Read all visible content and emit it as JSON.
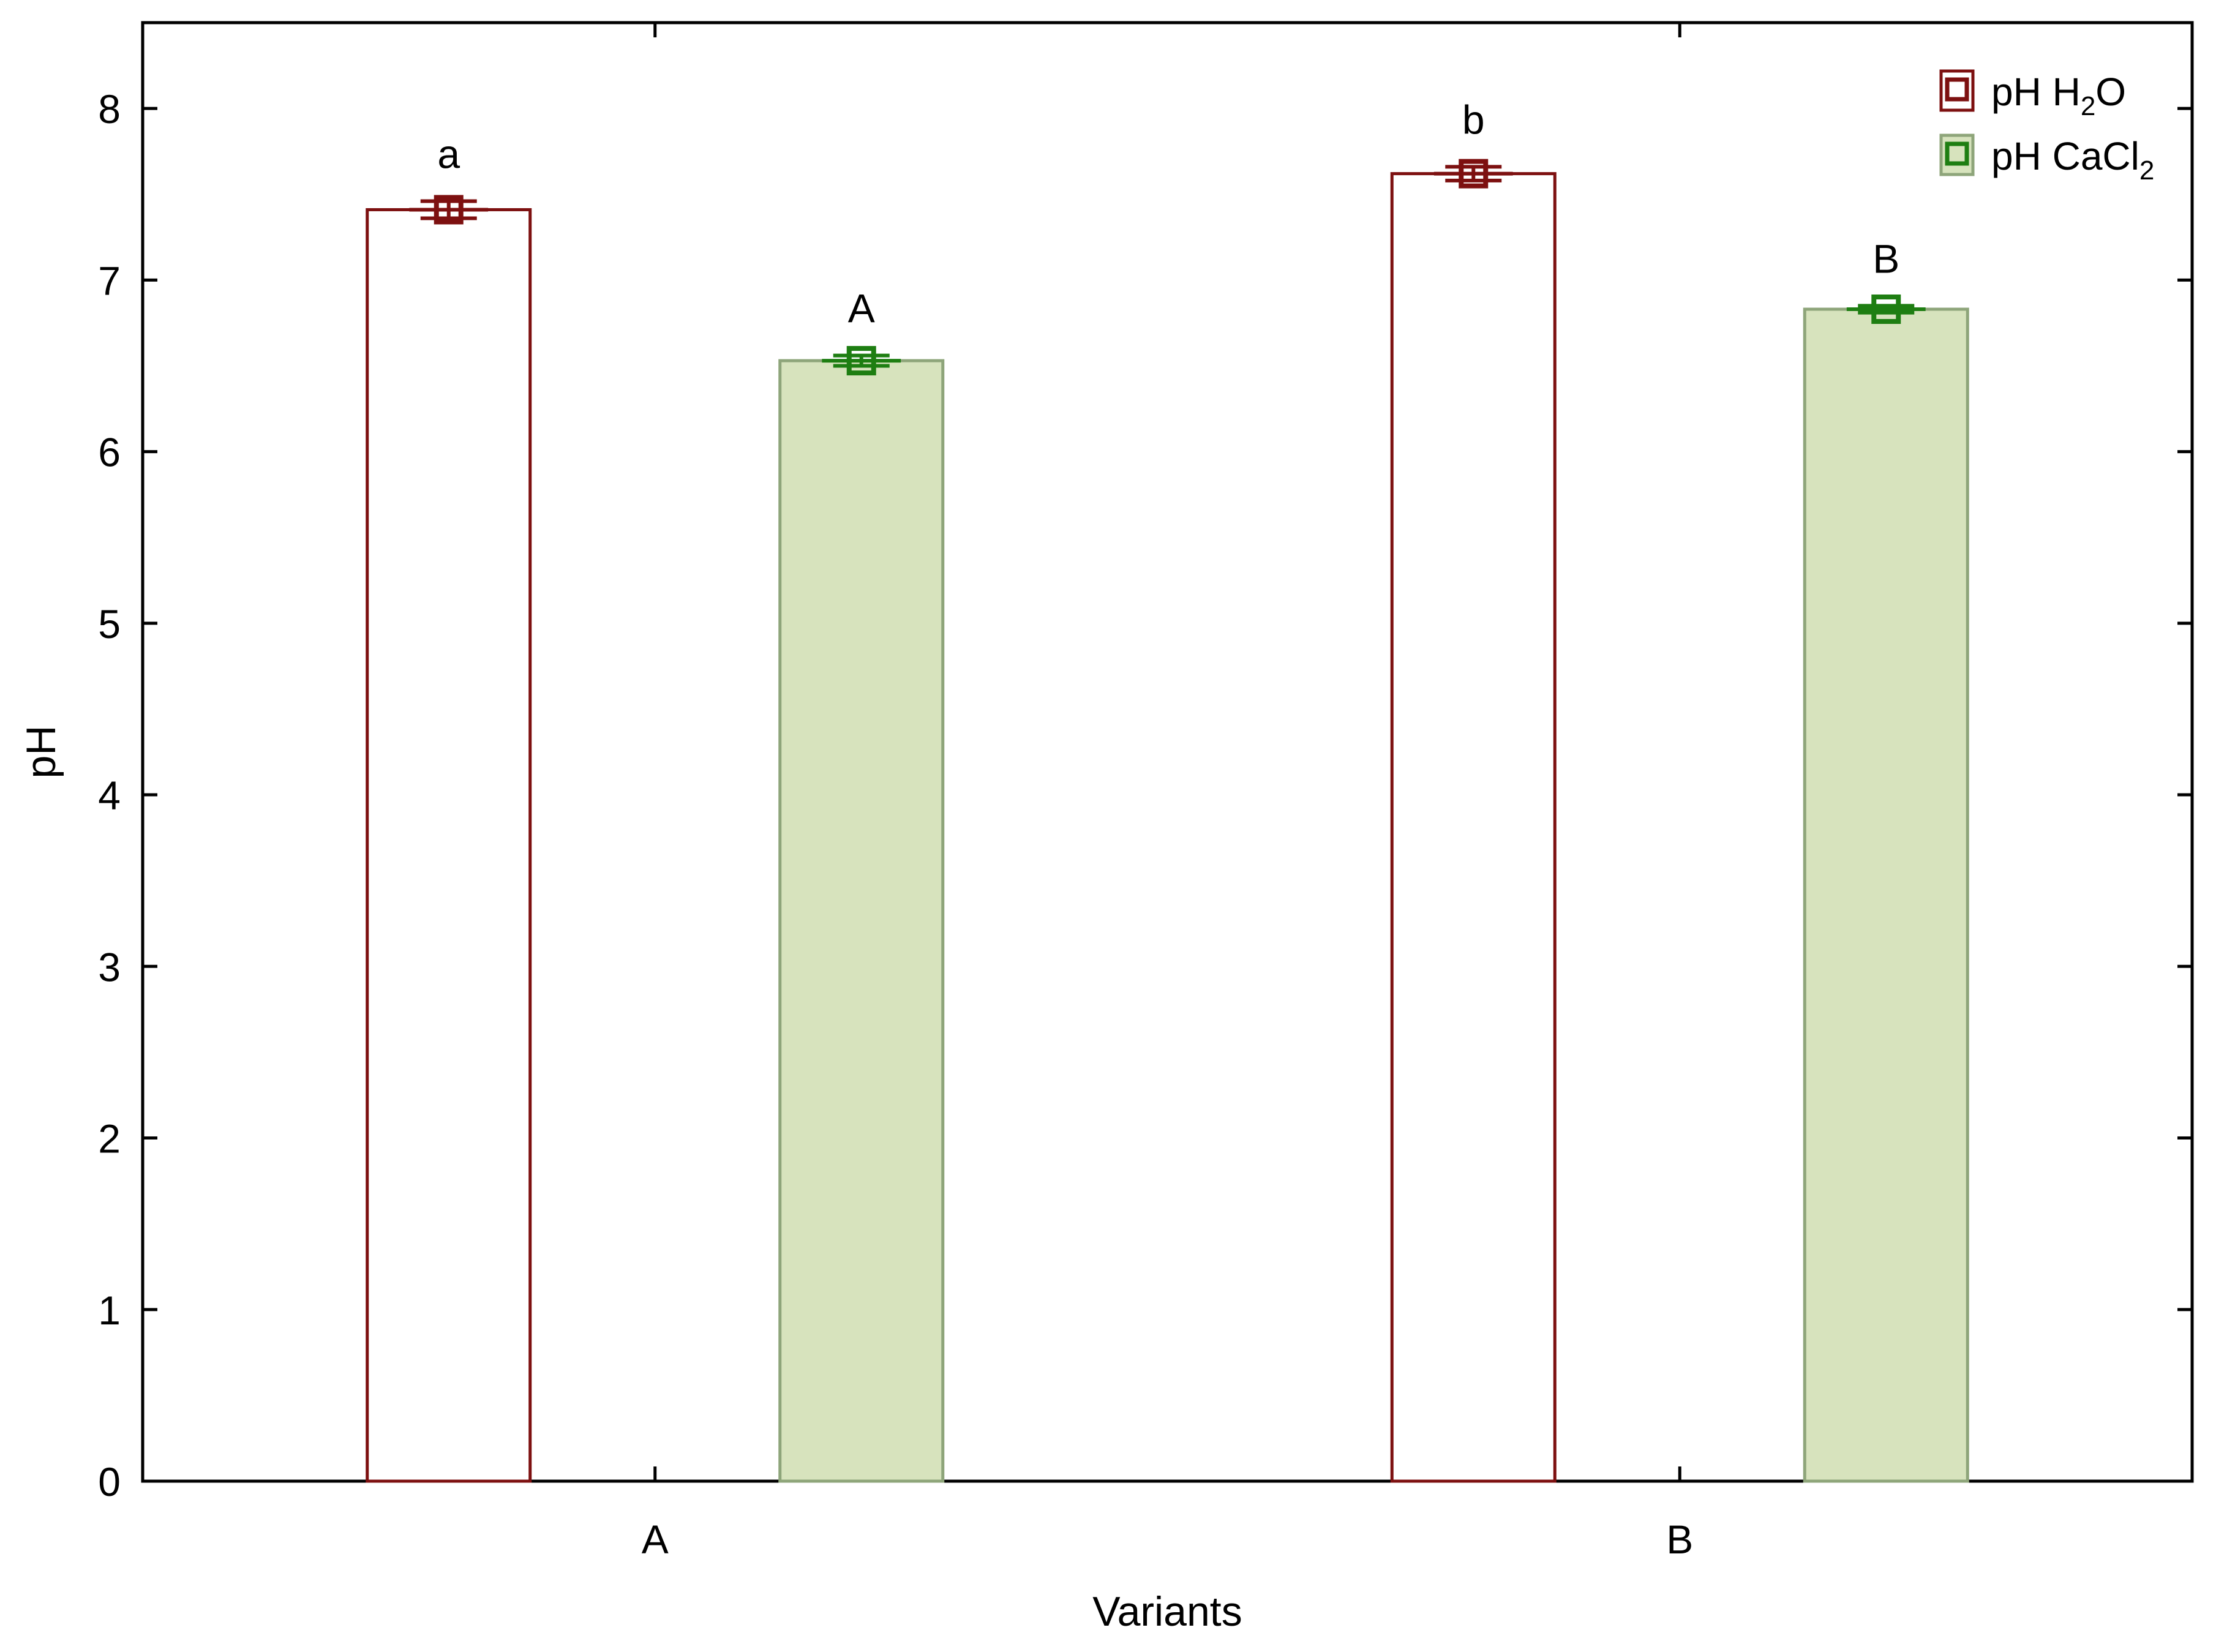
{
  "colors": {
    "h2o_edge": "#7d1010",
    "h2o_fill": "#ffffff",
    "cacl2_edge": "#8ea57a",
    "cacl2_fill": "#d7e3bd",
    "cacl2_marker": "#1e7e12",
    "axis": "#000000"
  },
  "legend": {
    "position": "top-right",
    "items": [
      {
        "text": "pH H",
        "sub": "2",
        "tail": "O"
      },
      {
        "text": "pH CaCl",
        "sub": "2",
        "tail": ""
      }
    ]
  },
  "chart_data": {
    "type": "bar",
    "xlabel": "Variants",
    "ylabel": "pH",
    "ylim": [
      0,
      8.5
    ],
    "yticks": [
      0,
      1,
      2,
      3,
      4,
      5,
      6,
      7,
      8
    ],
    "grid": false,
    "categories": [
      "A",
      "B"
    ],
    "series": [
      {
        "name": "pH H2O",
        "values": [
          7.41,
          7.62
        ],
        "error": [
          0.05,
          0.04
        ],
        "labels": [
          "a",
          "b"
        ]
      },
      {
        "name": "pH CaCl2",
        "values": [
          6.53,
          6.83
        ],
        "error": [
          0.03,
          0.02
        ],
        "labels": [
          "A",
          "B"
        ]
      }
    ]
  }
}
